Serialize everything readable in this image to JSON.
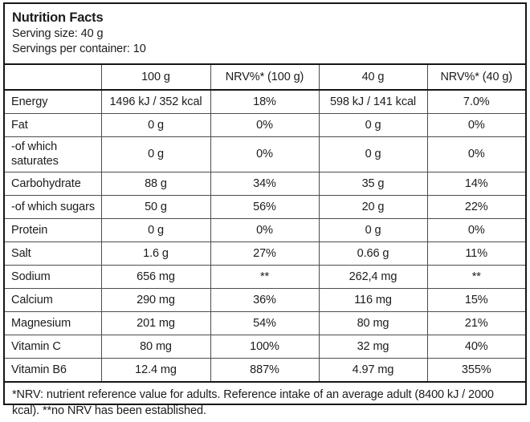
{
  "label": {
    "title": "Nutrition Facts",
    "serving_size": "Serving size: 40 g",
    "servings_per_container": "Servings per container: 10",
    "columns": [
      "",
      "100 g",
      "NRV%* (100 g)",
      "40 g",
      "NRV%* (40 g)"
    ],
    "rows": [
      {
        "name": "Energy",
        "per100g": "1496 kJ / 352 kcal",
        "nrv100g": "18%",
        "per40g": "598 kJ / 141 kcal",
        "nrv40g": "7.0%"
      },
      {
        "name": "Fat",
        "per100g": "0 g",
        "nrv100g": "0%",
        "per40g": "0 g",
        "nrv40g": "0%"
      },
      {
        "name": "-of which saturates",
        "per100g": "0 g",
        "nrv100g": "0%",
        "per40g": "0 g",
        "nrv40g": "0%"
      },
      {
        "name": "Carbohydrate",
        "per100g": "88 g",
        "nrv100g": "34%",
        "per40g": "35 g",
        "nrv40g": "14%"
      },
      {
        "name": "-of which sugars",
        "per100g": "50 g",
        "nrv100g": "56%",
        "per40g": "20 g",
        "nrv40g": "22%"
      },
      {
        "name": "Protein",
        "per100g": "0 g",
        "nrv100g": "0%",
        "per40g": "0 g",
        "nrv40g": "0%"
      },
      {
        "name": "Salt",
        "per100g": "1.6 g",
        "nrv100g": "27%",
        "per40g": "0.66 g",
        "nrv40g": "11%"
      },
      {
        "name": "Sodium",
        "per100g": "656 mg",
        "nrv100g": "**",
        "per40g": "262,4 mg",
        "nrv40g": "**"
      },
      {
        "name": "Calcium",
        "per100g": "290 mg",
        "nrv100g": "36%",
        "per40g": "116 mg",
        "nrv40g": "15%"
      },
      {
        "name": "Magnesium",
        "per100g": "201 mg",
        "nrv100g": "54%",
        "per40g": "80 mg",
        "nrv40g": "21%"
      },
      {
        "name": "Vitamin C",
        "per100g": "80 mg",
        "nrv100g": "100%",
        "per40g": "32 mg",
        "nrv40g": "40%"
      },
      {
        "name": "Vitamin B6",
        "per100g": "12.4 mg",
        "nrv100g": "887%",
        "per40g": "4.97 mg",
        "nrv40g": "355%"
      }
    ],
    "footnote": "*NRV: nutrient reference value for adults. Reference intake of an average adult (8400 kJ / 2000 kcal). **no NRV has been established."
  }
}
